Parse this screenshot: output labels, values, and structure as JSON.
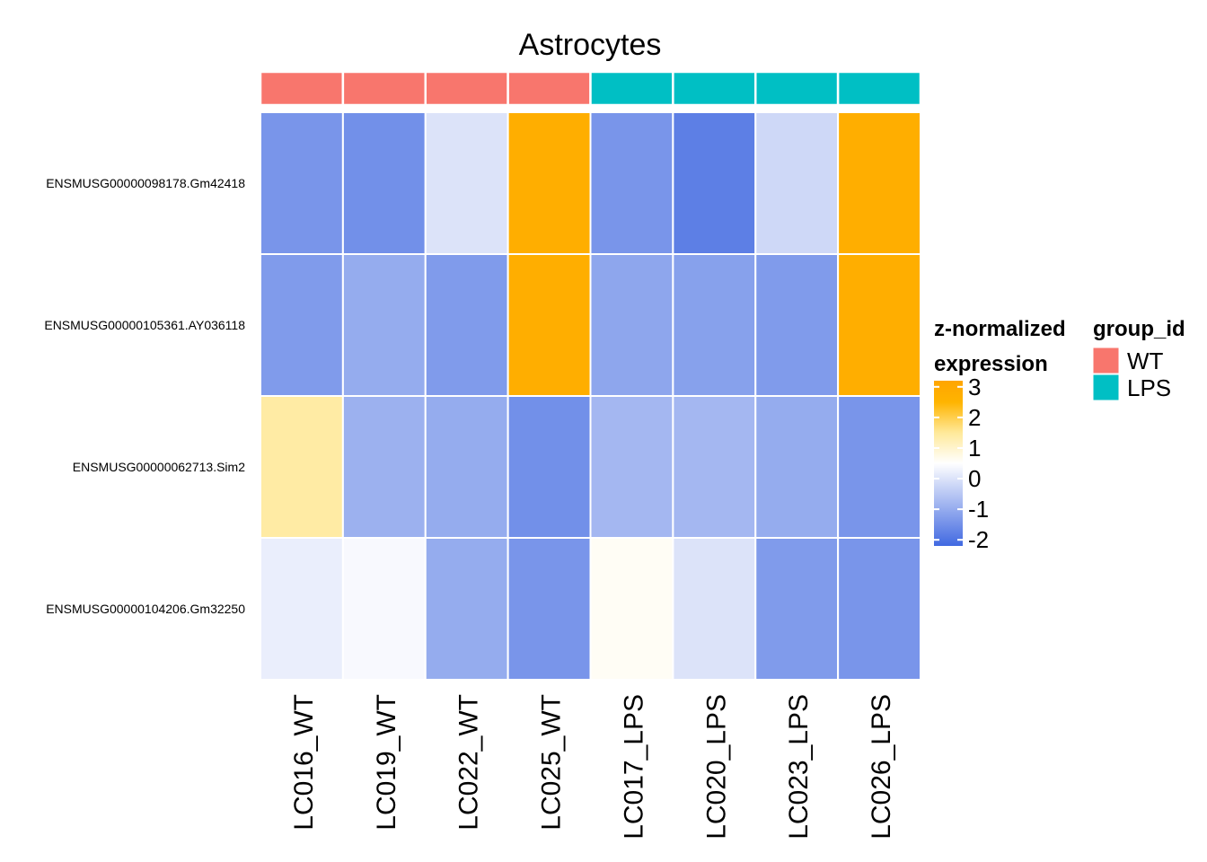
{
  "chart_data": {
    "type": "heatmap",
    "title": "Astrocytes",
    "columns": [
      "LC016_WT",
      "LC019_WT",
      "LC022_WT",
      "LC025_WT",
      "LC017_LPS",
      "LC020_LPS",
      "LC023_LPS",
      "LC026_LPS"
    ],
    "column_groups": [
      "WT",
      "WT",
      "WT",
      "WT",
      "LPS",
      "LPS",
      "LPS",
      "LPS"
    ],
    "rows": [
      "ENSMUSG00000098178.Gm42418",
      "ENSMUSG00000105361.AY036118",
      "ENSMUSG00000062713.Sim2",
      "ENSMUSG00000104206.Gm32250"
    ],
    "values": [
      [
        -1.4,
        -1.5,
        0.0,
        2.8,
        -1.4,
        -1.8,
        -0.2,
        2.8
      ],
      [
        -1.3,
        -1.0,
        -1.3,
        2.8,
        -1.1,
        -1.2,
        -1.3,
        2.8
      ],
      [
        1.4,
        -0.9,
        -1.0,
        -1.5,
        -0.8,
        -0.8,
        -1.0,
        -1.4
      ],
      [
        0.2,
        0.4,
        -1.0,
        -1.4,
        0.6,
        0.0,
        -1.3,
        -1.4
      ]
    ],
    "color_scale": {
      "stops": [
        {
          "value": -2.2,
          "color": "#4169e1"
        },
        {
          "value": 0.5,
          "color": "#ffffff"
        },
        {
          "value": 1.5,
          "color": "#ffe99a"
        },
        {
          "value": 2.5,
          "color": "#ffb400"
        },
        {
          "value": 3.2,
          "color": "#ffa500"
        }
      ],
      "range": [
        -2.2,
        3.2
      ],
      "ticks": [
        3,
        2,
        1,
        0,
        -1,
        -2
      ]
    },
    "legend_continuous": {
      "title_line1": "z-normalized",
      "title_line2": "expression"
    },
    "legend_groups": {
      "title": "group_id",
      "items": [
        {
          "label": "WT",
          "color": "#f8766d"
        },
        {
          "label": "LPS",
          "color": "#00bfc4"
        }
      ]
    }
  }
}
